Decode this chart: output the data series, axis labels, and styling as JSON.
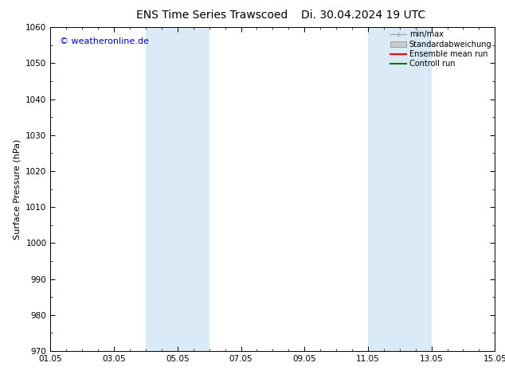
{
  "title": "ENS Time Series Trawscoed",
  "title2": "Di. 30.04.2024 19 UTC",
  "ylabel": "Surface Pressure (hPa)",
  "ylim": [
    970,
    1060
  ],
  "yticks": [
    970,
    980,
    990,
    1000,
    1010,
    1020,
    1030,
    1040,
    1050,
    1060
  ],
  "xlim_start": 0,
  "xlim_end": 14,
  "xtick_positions": [
    0,
    2,
    4,
    6,
    8,
    10,
    12,
    14
  ],
  "xtick_labels": [
    "01.05",
    "03.05",
    "05.05",
    "07.05",
    "09.05",
    "11.05",
    "13.05",
    "15.05"
  ],
  "shaded_bands": [
    {
      "xmin": 3.0,
      "xmax": 5.0
    },
    {
      "xmin": 10.0,
      "xmax": 12.0
    }
  ],
  "shade_color": "#daeaf7",
  "watermark": "© weatheronline.de",
  "watermark_color": "#0000bb",
  "legend_items": [
    {
      "label": "min/max",
      "color": "#aaaaaa",
      "type": "minmax"
    },
    {
      "label": "Standardabweichung",
      "color": "#cccccc",
      "type": "std"
    },
    {
      "label": "Ensemble mean run",
      "color": "#ff0000",
      "type": "line"
    },
    {
      "label": "Controll run",
      "color": "#007700",
      "type": "line"
    }
  ],
  "bg_color": "#ffffff",
  "title_fontsize": 10,
  "axis_label_fontsize": 8,
  "tick_fontsize": 7.5,
  "watermark_fontsize": 8,
  "legend_fontsize": 7
}
